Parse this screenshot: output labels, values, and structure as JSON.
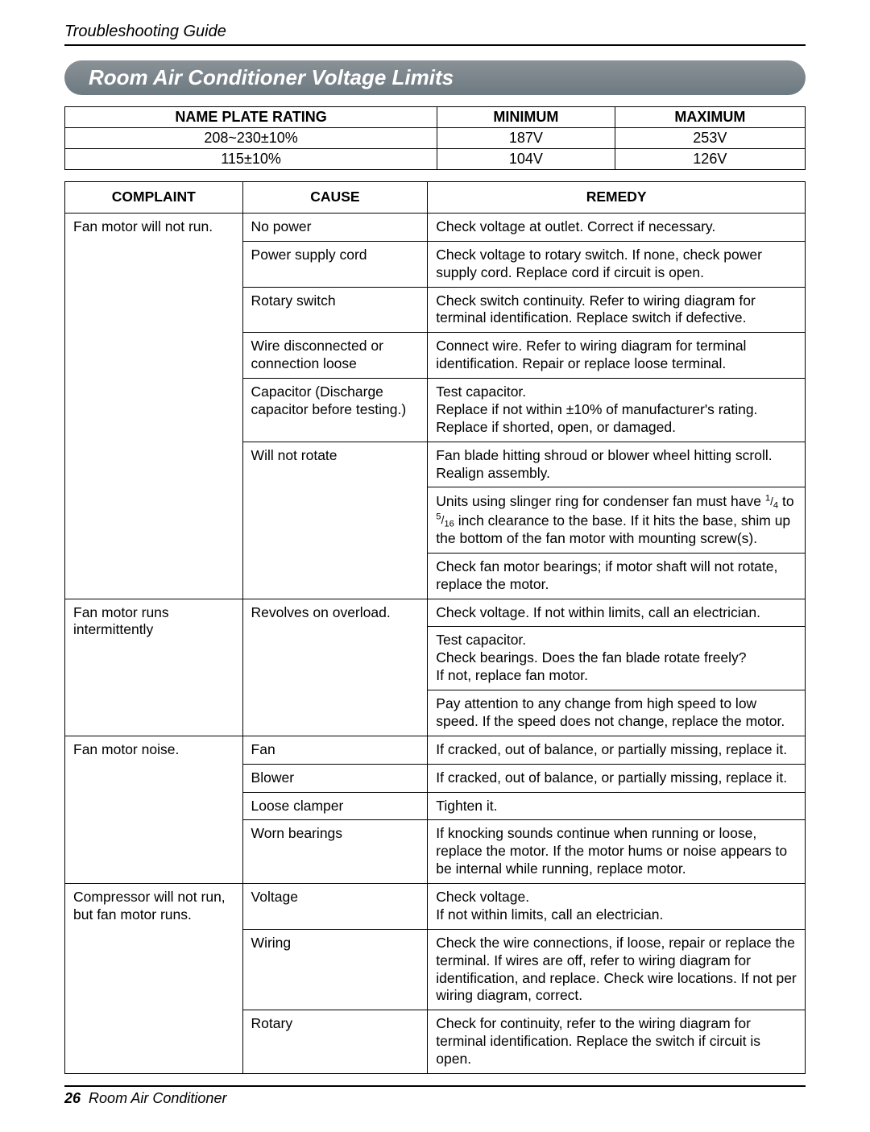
{
  "header": {
    "title": "Troubleshooting Guide"
  },
  "section": {
    "title": "Room Air Conditioner Voltage Limits"
  },
  "voltage_table": {
    "headers": [
      "NAME PLATE RATING",
      "MINIMUM",
      "MAXIMUM"
    ],
    "rows": [
      [
        "208~230±10%",
        "187V",
        "253V"
      ],
      [
        "115±10%",
        "104V",
        "126V"
      ]
    ]
  },
  "troubleshoot_table": {
    "headers": [
      "COMPLAINT",
      "CAUSE",
      "REMEDY"
    ],
    "groups": [
      {
        "complaint": "Fan motor will not run.",
        "rows": [
          {
            "cause": "No power",
            "remedies": [
              "Check voltage at outlet. Correct if necessary."
            ]
          },
          {
            "cause": "Power supply cord",
            "remedies": [
              "Check voltage to rotary switch. If none, check power supply cord. Replace cord if circuit is open."
            ]
          },
          {
            "cause": "Rotary switch",
            "remedies": [
              "Check switch continuity. Refer to wiring diagram for terminal identification. Replace switch if defective."
            ]
          },
          {
            "cause": "Wire disconnected or connection loose",
            "remedies": [
              "Connect wire. Refer to wiring diagram for terminal identification. Repair or replace loose terminal."
            ]
          },
          {
            "cause": "Capacitor (Discharge capacitor before testing.)",
            "remedies": [
              "Test capacitor.\nReplace if not within ±10% of manufacturer's rating.\nReplace if shorted, open, or damaged."
            ]
          },
          {
            "cause": "Will not rotate",
            "remedies": [
              "Fan blade hitting shroud or blower wheel hitting scroll. Realign assembly.",
              "Units using slinger ring for condenser fan must have __FRAC1__ to __FRAC2__ inch clearance to the base. If it hits the base, shim up the bottom of the fan motor with mounting screw(s).",
              "Check fan motor bearings; if motor shaft will not rotate, replace the motor."
            ]
          }
        ]
      },
      {
        "complaint": "Fan motor runs intermittently",
        "rows": [
          {
            "cause": "Revolves on overload.",
            "remedies": [
              "Check voltage. If not within limits, call an electrician.",
              "Test capacitor.\nCheck bearings. Does the fan blade rotate freely?\nIf not, replace fan motor.",
              "Pay attention to any change from high speed to low speed. If the speed does not change, replace the motor."
            ]
          }
        ]
      },
      {
        "complaint": "Fan motor noise.",
        "rows": [
          {
            "cause": "Fan",
            "remedies": [
              "If cracked, out of balance, or partially missing, replace it."
            ]
          },
          {
            "cause": "Blower",
            "remedies": [
              "If cracked, out of balance, or partially missing, replace it."
            ]
          },
          {
            "cause": "Loose clamper",
            "remedies": [
              "Tighten it."
            ]
          },
          {
            "cause": "Worn bearings",
            "remedies": [
              "If knocking sounds continue when running or loose, replace the motor. If the motor hums or noise appears to be internal while running, replace motor."
            ]
          }
        ]
      },
      {
        "complaint": "Compressor will not run, but fan motor runs.",
        "rows": [
          {
            "cause": "Voltage",
            "remedies": [
              "Check voltage.\nIf not within limits, call an electrician."
            ]
          },
          {
            "cause": "Wiring",
            "remedies": [
              "Check the wire connections, if loose, repair or replace the terminal. If wires are off, refer to wiring diagram for identification, and replace. Check wire locations. If not per wiring diagram, correct."
            ]
          },
          {
            "cause": "Rotary",
            "remedies": [
              "Check for continuity, refer to the wiring diagram for terminal identification. Replace the switch if circuit is open."
            ]
          }
        ]
      }
    ]
  },
  "fractions": {
    "f1": {
      "num": "1",
      "den": "4"
    },
    "f2": {
      "num": "5",
      "den": "16"
    }
  },
  "footer": {
    "page": "26",
    "text": "Room Air Conditioner"
  }
}
